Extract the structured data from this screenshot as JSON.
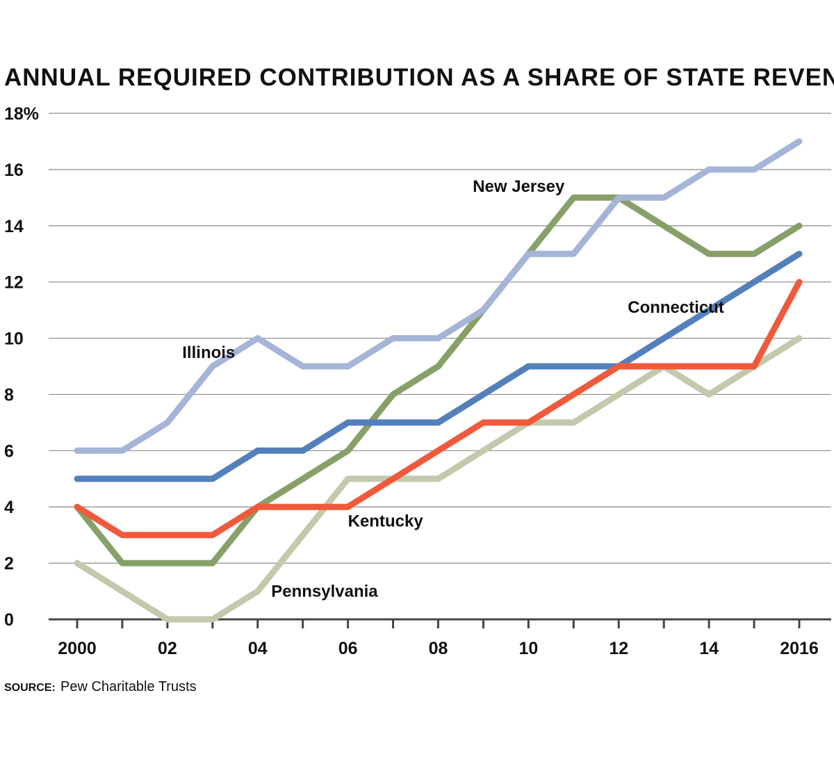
{
  "chart_data": {
    "type": "line",
    "title": "ANNUAL REQUIRED CONTRIBUTION AS A SHARE OF STATE REVENUE",
    "xlabel": "",
    "ylabel": "",
    "x": [
      2000,
      2001,
      2002,
      2003,
      2004,
      2005,
      2006,
      2007,
      2008,
      2009,
      2010,
      2011,
      2012,
      2013,
      2014,
      2015,
      2016
    ],
    "x_tick_values": [
      2000,
      2002,
      2004,
      2006,
      2008,
      2010,
      2012,
      2014,
      2016
    ],
    "x_tick_labels": [
      "2000",
      "02",
      "04",
      "06",
      "08",
      "10",
      "12",
      "14",
      "2016"
    ],
    "y_tick_values": [
      0,
      2,
      4,
      6,
      8,
      10,
      12,
      14,
      16,
      18
    ],
    "y_tick_labels": [
      "0",
      "2",
      "4",
      "6",
      "8",
      "10",
      "12",
      "14",
      "16",
      "18%"
    ],
    "xlim": [
      2000,
      2016
    ],
    "ylim": [
      0,
      18
    ],
    "grid": true,
    "legend": "none (series labeled directly on the chart)",
    "series": [
      {
        "name": "Pennsylvania",
        "color": "#c3c9ad",
        "values": [
          2,
          1,
          0,
          0,
          1,
          3,
          5,
          5,
          5,
          6,
          7,
          7,
          8,
          9,
          8,
          9,
          10
        ]
      },
      {
        "name": "New Jersey",
        "color": "#87a068",
        "values": [
          4,
          2,
          2,
          2,
          4,
          5,
          6,
          8,
          9,
          11,
          13,
          15,
          15,
          14,
          13,
          13,
          14
        ]
      },
      {
        "name": "Illinois",
        "color": "#a5b5d8",
        "values": [
          6,
          6,
          7,
          9,
          10,
          9,
          9,
          10,
          10,
          11,
          13,
          13,
          15,
          15,
          16,
          16,
          17
        ]
      },
      {
        "name": "Connecticut",
        "color": "#5380ba",
        "values": [
          5,
          5,
          5,
          5,
          6,
          6,
          7,
          7,
          7,
          8,
          9,
          9,
          9,
          10,
          11,
          12,
          13
        ]
      },
      {
        "name": "Kentucky",
        "color": "#ef5a3c",
        "values": [
          4,
          3,
          3,
          3,
          4,
          4,
          4,
          5,
          6,
          7,
          7,
          8,
          9,
          9,
          9,
          9,
          12
        ]
      }
    ],
    "source_label": "SOURCE:",
    "source_text": "Pew Charitable Trusts"
  }
}
